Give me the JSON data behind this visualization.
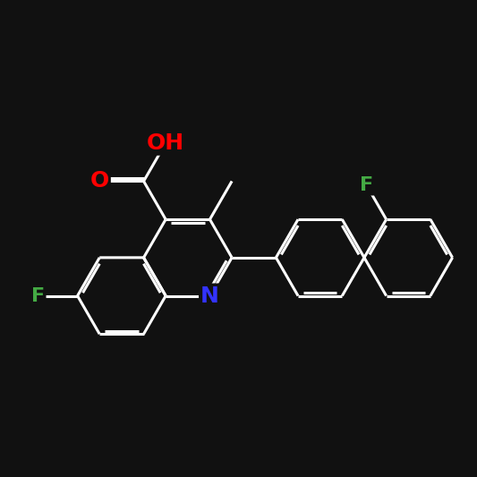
{
  "background_color": "#111111",
  "bond_color": "#ffffff",
  "atom_colors": {
    "N": "#3333ff",
    "O": "#ff0000",
    "F": "#44aa44",
    "C": "#ffffff"
  },
  "bond_width": 2.2,
  "font_size_main": 16,
  "font_size_F": 15
}
